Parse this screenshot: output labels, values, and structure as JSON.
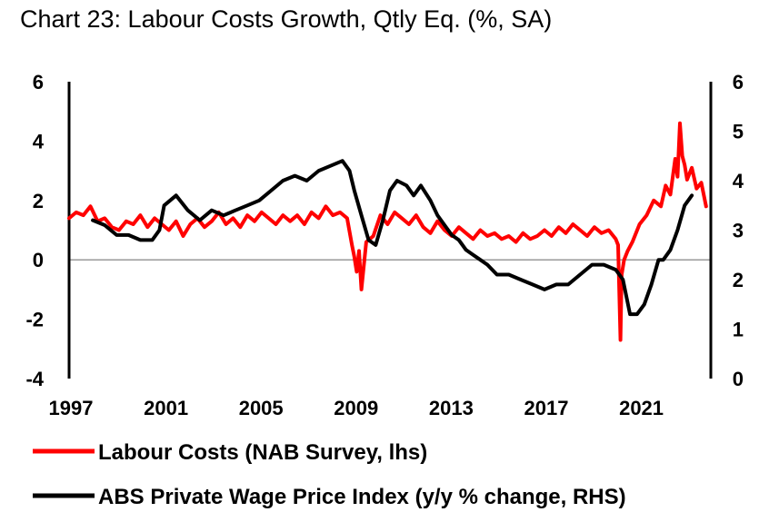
{
  "chart_data": {
    "type": "line",
    "title": "Chart 23: Labour Costs Growth, Qtly Eq. (%, SA)",
    "x_range": [
      1997,
      2024
    ],
    "x_ticks": [
      "1997",
      "2001",
      "2005",
      "2009",
      "2013",
      "2017",
      "2021"
    ],
    "y_left": {
      "range": [
        -4,
        6
      ],
      "ticks": [
        "6",
        "4",
        "2",
        "0",
        "-2",
        "-4"
      ]
    },
    "y_right": {
      "range": [
        0,
        6
      ],
      "ticks": [
        "6",
        "5",
        "4",
        "3",
        "2",
        "1",
        "0"
      ]
    },
    "zero_line": true,
    "series": [
      {
        "name": "Labour Costs (NAB Survey, lhs)",
        "axis": "left",
        "color": "#ff0000",
        "x": [
          1997.0,
          1997.3,
          1997.6,
          1997.9,
          1998.2,
          1998.5,
          1998.8,
          1999.1,
          1999.4,
          1999.7,
          2000.0,
          2000.3,
          2000.6,
          2000.9,
          2001.2,
          2001.5,
          2001.8,
          2002.1,
          2002.4,
          2002.7,
          2003.0,
          2003.3,
          2003.6,
          2003.9,
          2004.2,
          2004.5,
          2004.8,
          2005.1,
          2005.4,
          2005.7,
          2006.0,
          2006.3,
          2006.6,
          2006.9,
          2007.2,
          2007.5,
          2007.8,
          2008.1,
          2008.4,
          2008.7,
          2008.9,
          2009.0,
          2009.1,
          2009.2,
          2009.3,
          2009.5,
          2009.8,
          2010.1,
          2010.4,
          2010.7,
          2011.0,
          2011.3,
          2011.6,
          2011.9,
          2012.2,
          2012.5,
          2012.8,
          2013.1,
          2013.4,
          2013.7,
          2014.0,
          2014.3,
          2014.6,
          2014.9,
          2015.2,
          2015.5,
          2015.8,
          2016.1,
          2016.4,
          2016.7,
          2017.0,
          2017.3,
          2017.6,
          2017.9,
          2018.2,
          2018.5,
          2018.8,
          2019.1,
          2019.4,
          2019.7,
          2020.0,
          2020.1,
          2020.2,
          2020.25,
          2020.35,
          2020.5,
          2020.7,
          2021.0,
          2021.3,
          2021.6,
          2021.9,
          2022.1,
          2022.3,
          2022.5,
          2022.6,
          2022.7,
          2022.8,
          2022.9,
          2023.0,
          2023.2,
          2023.4,
          2023.6,
          2023.8
        ],
        "values": [
          1.4,
          1.6,
          1.5,
          1.8,
          1.3,
          1.4,
          1.1,
          1.0,
          1.3,
          1.2,
          1.5,
          1.1,
          1.4,
          1.2,
          1.0,
          1.3,
          0.8,
          1.2,
          1.4,
          1.1,
          1.3,
          1.6,
          1.2,
          1.4,
          1.1,
          1.5,
          1.3,
          1.6,
          1.4,
          1.2,
          1.5,
          1.3,
          1.5,
          1.2,
          1.6,
          1.4,
          1.8,
          1.5,
          1.6,
          1.4,
          0.5,
          0.1,
          -0.4,
          0.3,
          -1.0,
          0.6,
          0.8,
          1.5,
          1.2,
          1.6,
          1.4,
          1.2,
          1.5,
          1.1,
          0.9,
          1.3,
          1.0,
          0.8,
          1.1,
          0.9,
          0.7,
          1.0,
          0.8,
          0.9,
          0.7,
          0.8,
          0.6,
          0.9,
          0.7,
          0.8,
          1.0,
          0.8,
          1.1,
          0.9,
          1.2,
          1.0,
          0.8,
          1.1,
          0.9,
          1.0,
          0.7,
          0.5,
          -2.7,
          -0.5,
          0.0,
          0.3,
          0.6,
          1.2,
          1.5,
          2.0,
          1.8,
          2.5,
          2.2,
          3.4,
          2.8,
          4.6,
          3.5,
          3.2,
          2.7,
          3.1,
          2.4,
          2.6,
          1.8
        ]
      },
      {
        "name": "ABS Private Wage Price Index (y/y % change, RHS)",
        "axis": "right",
        "color": "#000000",
        "x": [
          1998.0,
          1998.5,
          1999.0,
          1999.5,
          2000.0,
          2000.5,
          2000.8,
          2001.0,
          2001.5,
          2002.0,
          2002.5,
          2003.0,
          2003.5,
          2004.0,
          2004.5,
          2005.0,
          2005.5,
          2006.0,
          2006.5,
          2007.0,
          2007.5,
          2008.0,
          2008.5,
          2008.8,
          2009.0,
          2009.3,
          2009.6,
          2009.9,
          2010.2,
          2010.5,
          2010.8,
          2011.2,
          2011.5,
          2011.8,
          2012.2,
          2012.5,
          2012.8,
          2013.1,
          2013.4,
          2013.7,
          2014.0,
          2014.3,
          2014.6,
          2015.0,
          2015.5,
          2016.0,
          2016.5,
          2017.0,
          2017.5,
          2018.0,
          2018.5,
          2019.0,
          2019.5,
          2020.0,
          2020.3,
          2020.6,
          2020.9,
          2021.2,
          2021.5,
          2021.8,
          2022.0,
          2022.3,
          2022.6,
          2022.9,
          2023.2
        ],
        "values": [
          3.2,
          3.1,
          2.9,
          2.9,
          2.8,
          2.8,
          3.0,
          3.5,
          3.7,
          3.4,
          3.2,
          3.4,
          3.3,
          3.4,
          3.5,
          3.6,
          3.8,
          4.0,
          4.1,
          4.0,
          4.2,
          4.3,
          4.4,
          4.2,
          3.8,
          3.3,
          2.8,
          2.7,
          3.2,
          3.8,
          4.0,
          3.9,
          3.7,
          3.9,
          3.6,
          3.3,
          3.1,
          2.9,
          2.8,
          2.6,
          2.5,
          2.4,
          2.3,
          2.1,
          2.1,
          2.0,
          1.9,
          1.8,
          1.9,
          1.9,
          2.1,
          2.3,
          2.3,
          2.2,
          2.0,
          1.3,
          1.3,
          1.5,
          1.9,
          2.4,
          2.4,
          2.6,
          3.0,
          3.5,
          3.7
        ]
      }
    ]
  }
}
